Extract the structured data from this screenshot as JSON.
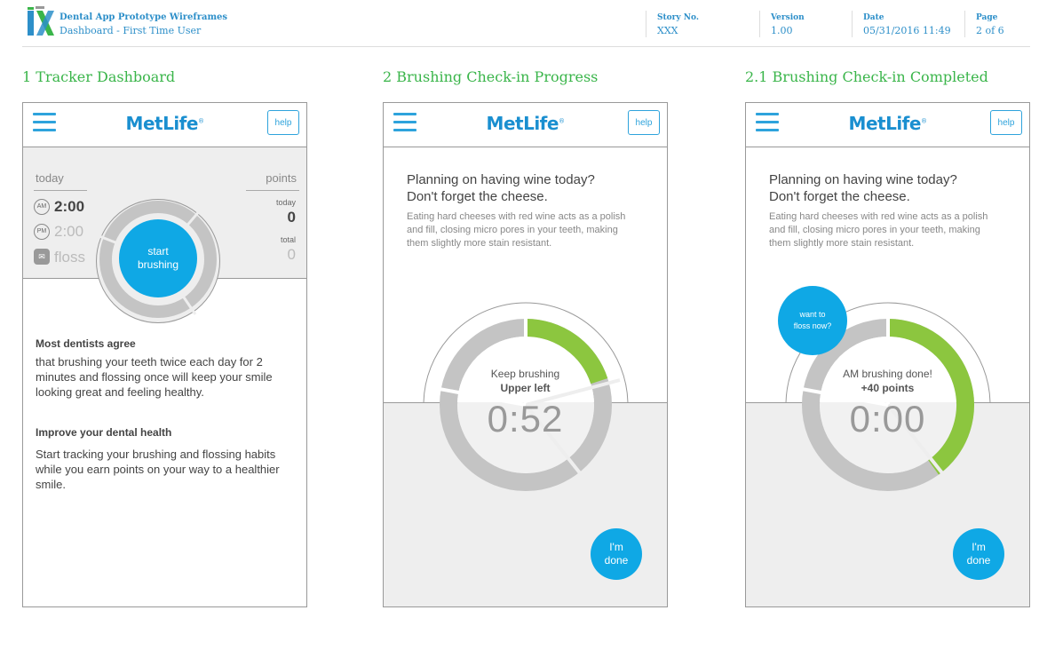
{
  "colors": {
    "accent": "#0fa8e5",
    "brand_blue": "#1a8fd0",
    "progress_green": "#8cc63f",
    "title_green": "#3ab54a",
    "ring_gray": "#c4c4c4"
  },
  "header": {
    "logo_icon": "ix-logo-icon",
    "title": "Dental App Prototype Wireframes",
    "subtitle": "Dashboard - First Time User",
    "story": {
      "label": "Story No.",
      "value": "XXX"
    },
    "version": {
      "label": "Version",
      "value": "1.00"
    },
    "date": {
      "label": "Date",
      "value": "05/31/2016 11:49"
    },
    "page": {
      "label": "Page",
      "value": "2 of 6"
    }
  },
  "screens": [
    {
      "section_title": "1 Tracker Dashboard",
      "brand": "MetLife",
      "help_label": "help",
      "today_label": "today",
      "points_label": "points",
      "am_badge": "AM",
      "am_time": "2:00",
      "pm_badge": "PM",
      "pm_time": "2:00",
      "floss_label": "floss",
      "points_today_label": "today",
      "points_today_value": "0",
      "points_total_label": "total",
      "points_total_value": "0",
      "start_label_1": "start",
      "start_label_2": "brushing",
      "heading_1": "Most dentists agree",
      "body_1": "that brushing your teeth twice each day for 2 minutes and flossing once will keep your smile looking great and feeling healthy.",
      "heading_2": "Improve your dental health",
      "body_2": "Start tracking your brushing and flossing habits while you earn points on your way to a healthier smile."
    },
    {
      "section_title": "2 Brushing Check-in Progress",
      "brand": "MetLife",
      "help_label": "help",
      "tip_heading_1": "Planning on having wine today?",
      "tip_heading_2": "Don't forget the cheese.",
      "tip_body": "Eating hard cheeses with red wine acts as a polish and fill, closing micro pores in your teeth, making them slightly more stain resistant.",
      "ring_caption_1": "Keep brushing",
      "ring_caption_2": "Upper left",
      "timer": "0:52",
      "done_label_1": "I'm",
      "done_label_2": "done",
      "progress_fraction": 0.2
    },
    {
      "section_title": "2.1 Brushing Check-in Completed",
      "brand": "MetLife",
      "help_label": "help",
      "tip_heading_1": "Planning on having wine today?",
      "tip_heading_2": "Don't forget the cheese.",
      "tip_body": "Eating hard cheeses with red wine acts as a polish and fill, closing micro pores in your teeth, making them slightly more stain resistant.",
      "ring_caption_1": "AM brushing done!",
      "ring_caption_2": "+40 points",
      "timer": "0:00",
      "floss_label_1": "want to",
      "floss_label_2": "floss now?",
      "done_label_1": "I'm",
      "done_label_2": "done",
      "progress_fraction": 0.4
    }
  ]
}
